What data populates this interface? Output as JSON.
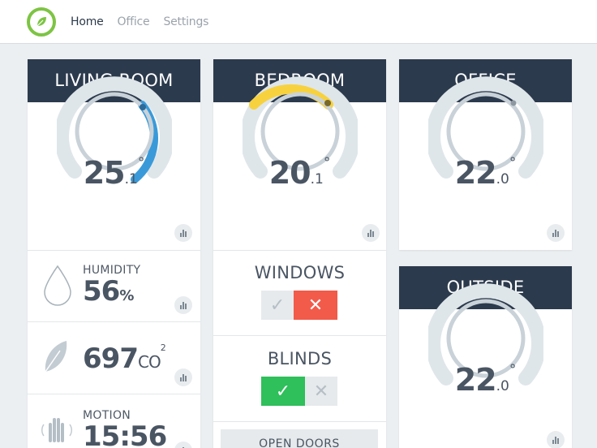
{
  "nav": {
    "items": [
      {
        "label": "Home",
        "active": true
      },
      {
        "label": "Office",
        "active": false
      },
      {
        "label": "Settings",
        "active": false
      }
    ]
  },
  "rooms": {
    "living": {
      "title": "LIVING ROOM",
      "temp_int": "25",
      "temp_dec": ".1",
      "temp_deg": "°",
      "accent": "#3a9ad9"
    },
    "bedroom": {
      "title": "BEDROOM",
      "temp_int": "20",
      "temp_dec": ".1",
      "temp_deg": "°",
      "accent": "#f7d23e"
    },
    "office": {
      "title": "OFFICE",
      "temp_int": "22",
      "temp_dec": ".0",
      "temp_deg": "°"
    },
    "outside": {
      "title": "OUTSIDE",
      "temp_int": "22",
      "temp_dec": ".0",
      "temp_deg": "°"
    }
  },
  "sensors": {
    "humidity": {
      "label": "HUMIDITY",
      "value": "56",
      "unit": "%"
    },
    "co2": {
      "value": "697",
      "unit": "CO",
      "sub": "2"
    },
    "motion": {
      "label": "MOTION",
      "value": "15:56"
    }
  },
  "bedroom_controls": {
    "windows": {
      "label": "WINDOWS",
      "state": "closed"
    },
    "blinds": {
      "label": "BLINDS",
      "state": "open"
    },
    "open_doors": "OPEN DOORS"
  },
  "colors": {
    "header_bg": "#2c3a4d",
    "brand_green": "#7dc443",
    "danger": "#f25a4a",
    "success": "#2fbf5b"
  }
}
